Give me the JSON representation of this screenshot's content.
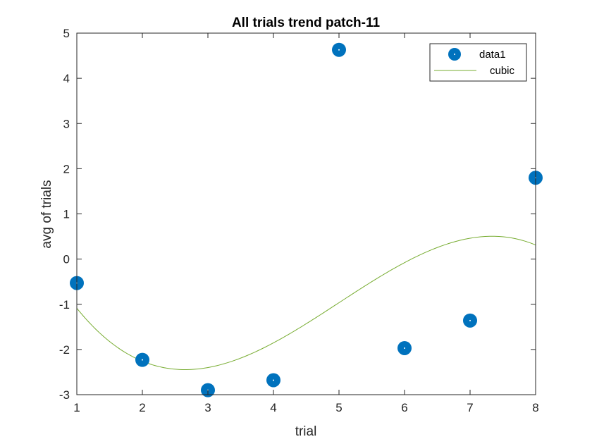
{
  "chart_data": {
    "type": "scatter",
    "title": "All trials trend patch-11",
    "xlabel": "trial",
    "ylabel": "avg of trials",
    "xlim": [
      1,
      8
    ],
    "ylim": [
      -3,
      5
    ],
    "xticks": [
      1,
      2,
      3,
      4,
      5,
      6,
      7,
      8
    ],
    "yticks": [
      -3,
      -2,
      -1,
      0,
      1,
      2,
      3,
      4,
      5
    ],
    "grid": false,
    "legend": "top-right",
    "series": [
      {
        "name": "data1",
        "type": "scatter",
        "color": "#0072BD",
        "x": [
          1,
          2,
          3,
          4,
          5,
          6,
          7,
          8
        ],
        "y": [
          -0.53,
          -2.23,
          -2.9,
          -2.68,
          4.63,
          -1.97,
          -1.36,
          1.8
        ]
      },
      {
        "name": "cubic",
        "type": "line",
        "color": "#77AC30",
        "coefficients": [
          -0.0574,
          0.86,
          -3.35,
          1.46
        ]
      }
    ]
  }
}
